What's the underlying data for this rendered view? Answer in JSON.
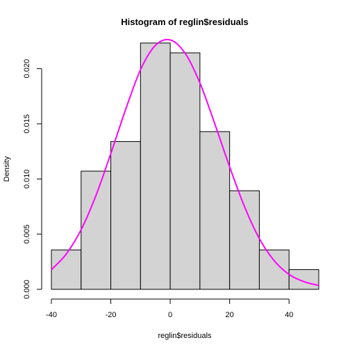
{
  "chart_data": {
    "type": "bar",
    "title": "Histogram of reglin$residuals",
    "xlabel": "reglin$residuals",
    "ylabel": "Density",
    "xlim": [
      -40,
      50
    ],
    "ylim": [
      0,
      0.0225
    ],
    "x_ticks": [
      -40,
      -20,
      0,
      20,
      40
    ],
    "x_tick_labels": [
      "-40",
      "-20",
      "0",
      "20",
      "40"
    ],
    "y_ticks": [
      0,
      0.005,
      0.01,
      0.015,
      0.02
    ],
    "y_tick_labels": [
      "0.000",
      "0.005",
      "0.010",
      "0.015",
      "0.020"
    ],
    "bins": [
      {
        "start": -40,
        "end": -30,
        "density": 0.00357
      },
      {
        "start": -30,
        "end": -20,
        "density": 0.01071
      },
      {
        "start": -20,
        "end": -10,
        "density": 0.01339
      },
      {
        "start": -10,
        "end": 0,
        "density": 0.02232
      },
      {
        "start": 0,
        "end": 10,
        "density": 0.02143
      },
      {
        "start": 10,
        "end": 20,
        "density": 0.01429
      },
      {
        "start": 20,
        "end": 30,
        "density": 0.00893
      },
      {
        "start": 30,
        "end": 40,
        "density": 0.00357
      },
      {
        "start": 40,
        "end": 50,
        "density": 0.00179
      }
    ],
    "curve": {
      "color": "#ff00ff",
      "x": [
        -40,
        -35,
        -30,
        -25,
        -20,
        -15,
        -10,
        -5,
        0,
        5,
        10,
        15,
        20,
        25,
        30,
        35,
        40,
        45,
        50
      ],
      "y": [
        0.00178,
        0.0032,
        0.0054,
        0.0085,
        0.0123,
        0.0163,
        0.0199,
        0.0221,
        0.0226,
        0.0214,
        0.0187,
        0.015,
        0.0111,
        0.0075,
        0.0046,
        0.0026,
        0.00135,
        0.0007,
        0.00035
      ]
    },
    "bar_fill": "#d3d3d3",
    "bar_stroke": "#000000",
    "grid": false
  }
}
